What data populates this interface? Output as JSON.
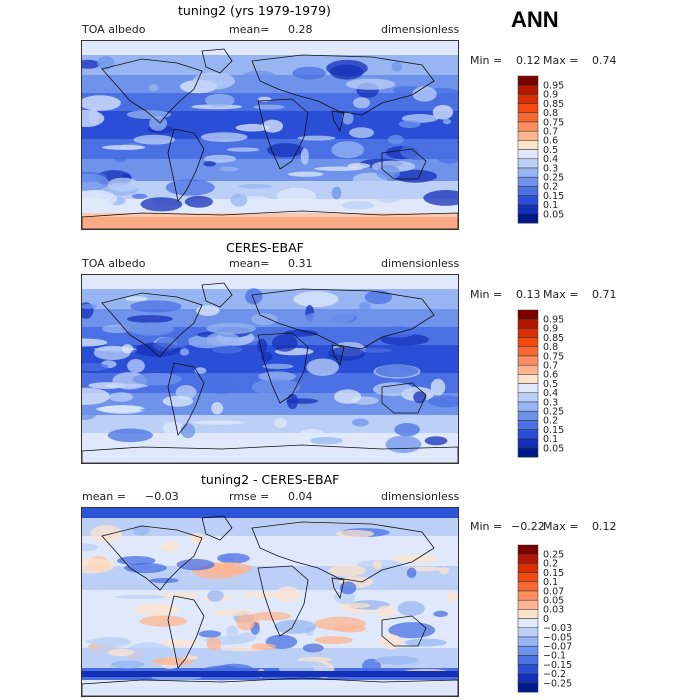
{
  "season": "ANN",
  "panels": [
    {
      "title": "tuning2 (yrs 1979-1979)",
      "left_label": "TOA albedo",
      "mean_label": "mean=",
      "mean_value": "0.28",
      "right_label": "dimensionless",
      "min_label": "Min =",
      "min_value": "0.12",
      "max_label": "Max =",
      "max_value": "0.74",
      "colorbar_labels": [
        "0.95",
        "0.9",
        "0.85",
        "0.8",
        "0.75",
        "0.7",
        "0.6",
        "0.5",
        "0.4",
        "0.3",
        "0.25",
        "0.2",
        "0.15",
        "0.1",
        "0.05"
      ]
    },
    {
      "title": "CERES-EBAF",
      "left_label": "TOA albedo",
      "mean_label": "mean=",
      "mean_value": "0.31",
      "right_label": "dimensionless",
      "min_label": "Min =",
      "min_value": "0.13",
      "max_label": "Max =",
      "max_value": "0.71",
      "colorbar_labels": [
        "0.95",
        "0.9",
        "0.85",
        "0.8",
        "0.75",
        "0.7",
        "0.6",
        "0.5",
        "0.4",
        "0.3",
        "0.25",
        "0.2",
        "0.15",
        "0.1",
        "0.05"
      ]
    },
    {
      "title": "tuning2 - CERES-EBAF",
      "left_label": "mean =",
      "left_value": "−0.03",
      "mean_label": "rmse =",
      "mean_value": "0.04",
      "right_label": "dimensionless",
      "min_label": "Min =",
      "min_value": "−0.22",
      "max_label": "Max =",
      "max_value": "0.12",
      "colorbar_labels": [
        "0.25",
        "0.2",
        "0.15",
        "0.1",
        "0.07",
        "0.05",
        "0.03",
        "0",
        "−0.03",
        "−0.05",
        "−0.07",
        "−0.1",
        "−0.15",
        "−0.2",
        "−0.25"
      ]
    }
  ],
  "colors": {
    "colorbar_top_to_bottom": [
      "#7a0000",
      "#b01800",
      "#d92f00",
      "#f04a10",
      "#f86a35",
      "#fb8f62",
      "#fdb48f",
      "#fde3cc",
      "#dfe9fb",
      "#bcd0f7",
      "#97b5f2",
      "#6f93eb",
      "#4a70e3",
      "#2a4fd6",
      "#1530b8",
      "#001a8c"
    ],
    "background_low": "#3d6be0",
    "background_mid": "#a9c2f2",
    "background_high": "#fbc9b0",
    "land_outline": "#111111"
  },
  "chart_data": [
    {
      "type": "heatmap",
      "title": "tuning2 (yrs 1979-1979)",
      "variable": "TOA albedo",
      "units": "dimensionless",
      "mean": 0.28,
      "min": 0.12,
      "max": 0.74,
      "levels": [
        0.05,
        0.1,
        0.15,
        0.2,
        0.25,
        0.3,
        0.4,
        0.5,
        0.6,
        0.7,
        0.75,
        0.8,
        0.85,
        0.9,
        0.95
      ]
    },
    {
      "type": "heatmap",
      "title": "CERES-EBAF",
      "variable": "TOA albedo",
      "units": "dimensionless",
      "mean": 0.31,
      "min": 0.13,
      "max": 0.71,
      "levels": [
        0.05,
        0.1,
        0.15,
        0.2,
        0.25,
        0.3,
        0.4,
        0.5,
        0.6,
        0.7,
        0.75,
        0.8,
        0.85,
        0.9,
        0.95
      ]
    },
    {
      "type": "heatmap",
      "title": "tuning2 - CERES-EBAF",
      "units": "dimensionless",
      "mean": -0.03,
      "rmse": 0.04,
      "min": -0.22,
      "max": 0.12,
      "levels": [
        -0.25,
        -0.2,
        -0.15,
        -0.1,
        -0.07,
        -0.05,
        -0.03,
        0,
        0.03,
        0.05,
        0.07,
        0.1,
        0.15,
        0.2,
        0.25
      ]
    }
  ]
}
